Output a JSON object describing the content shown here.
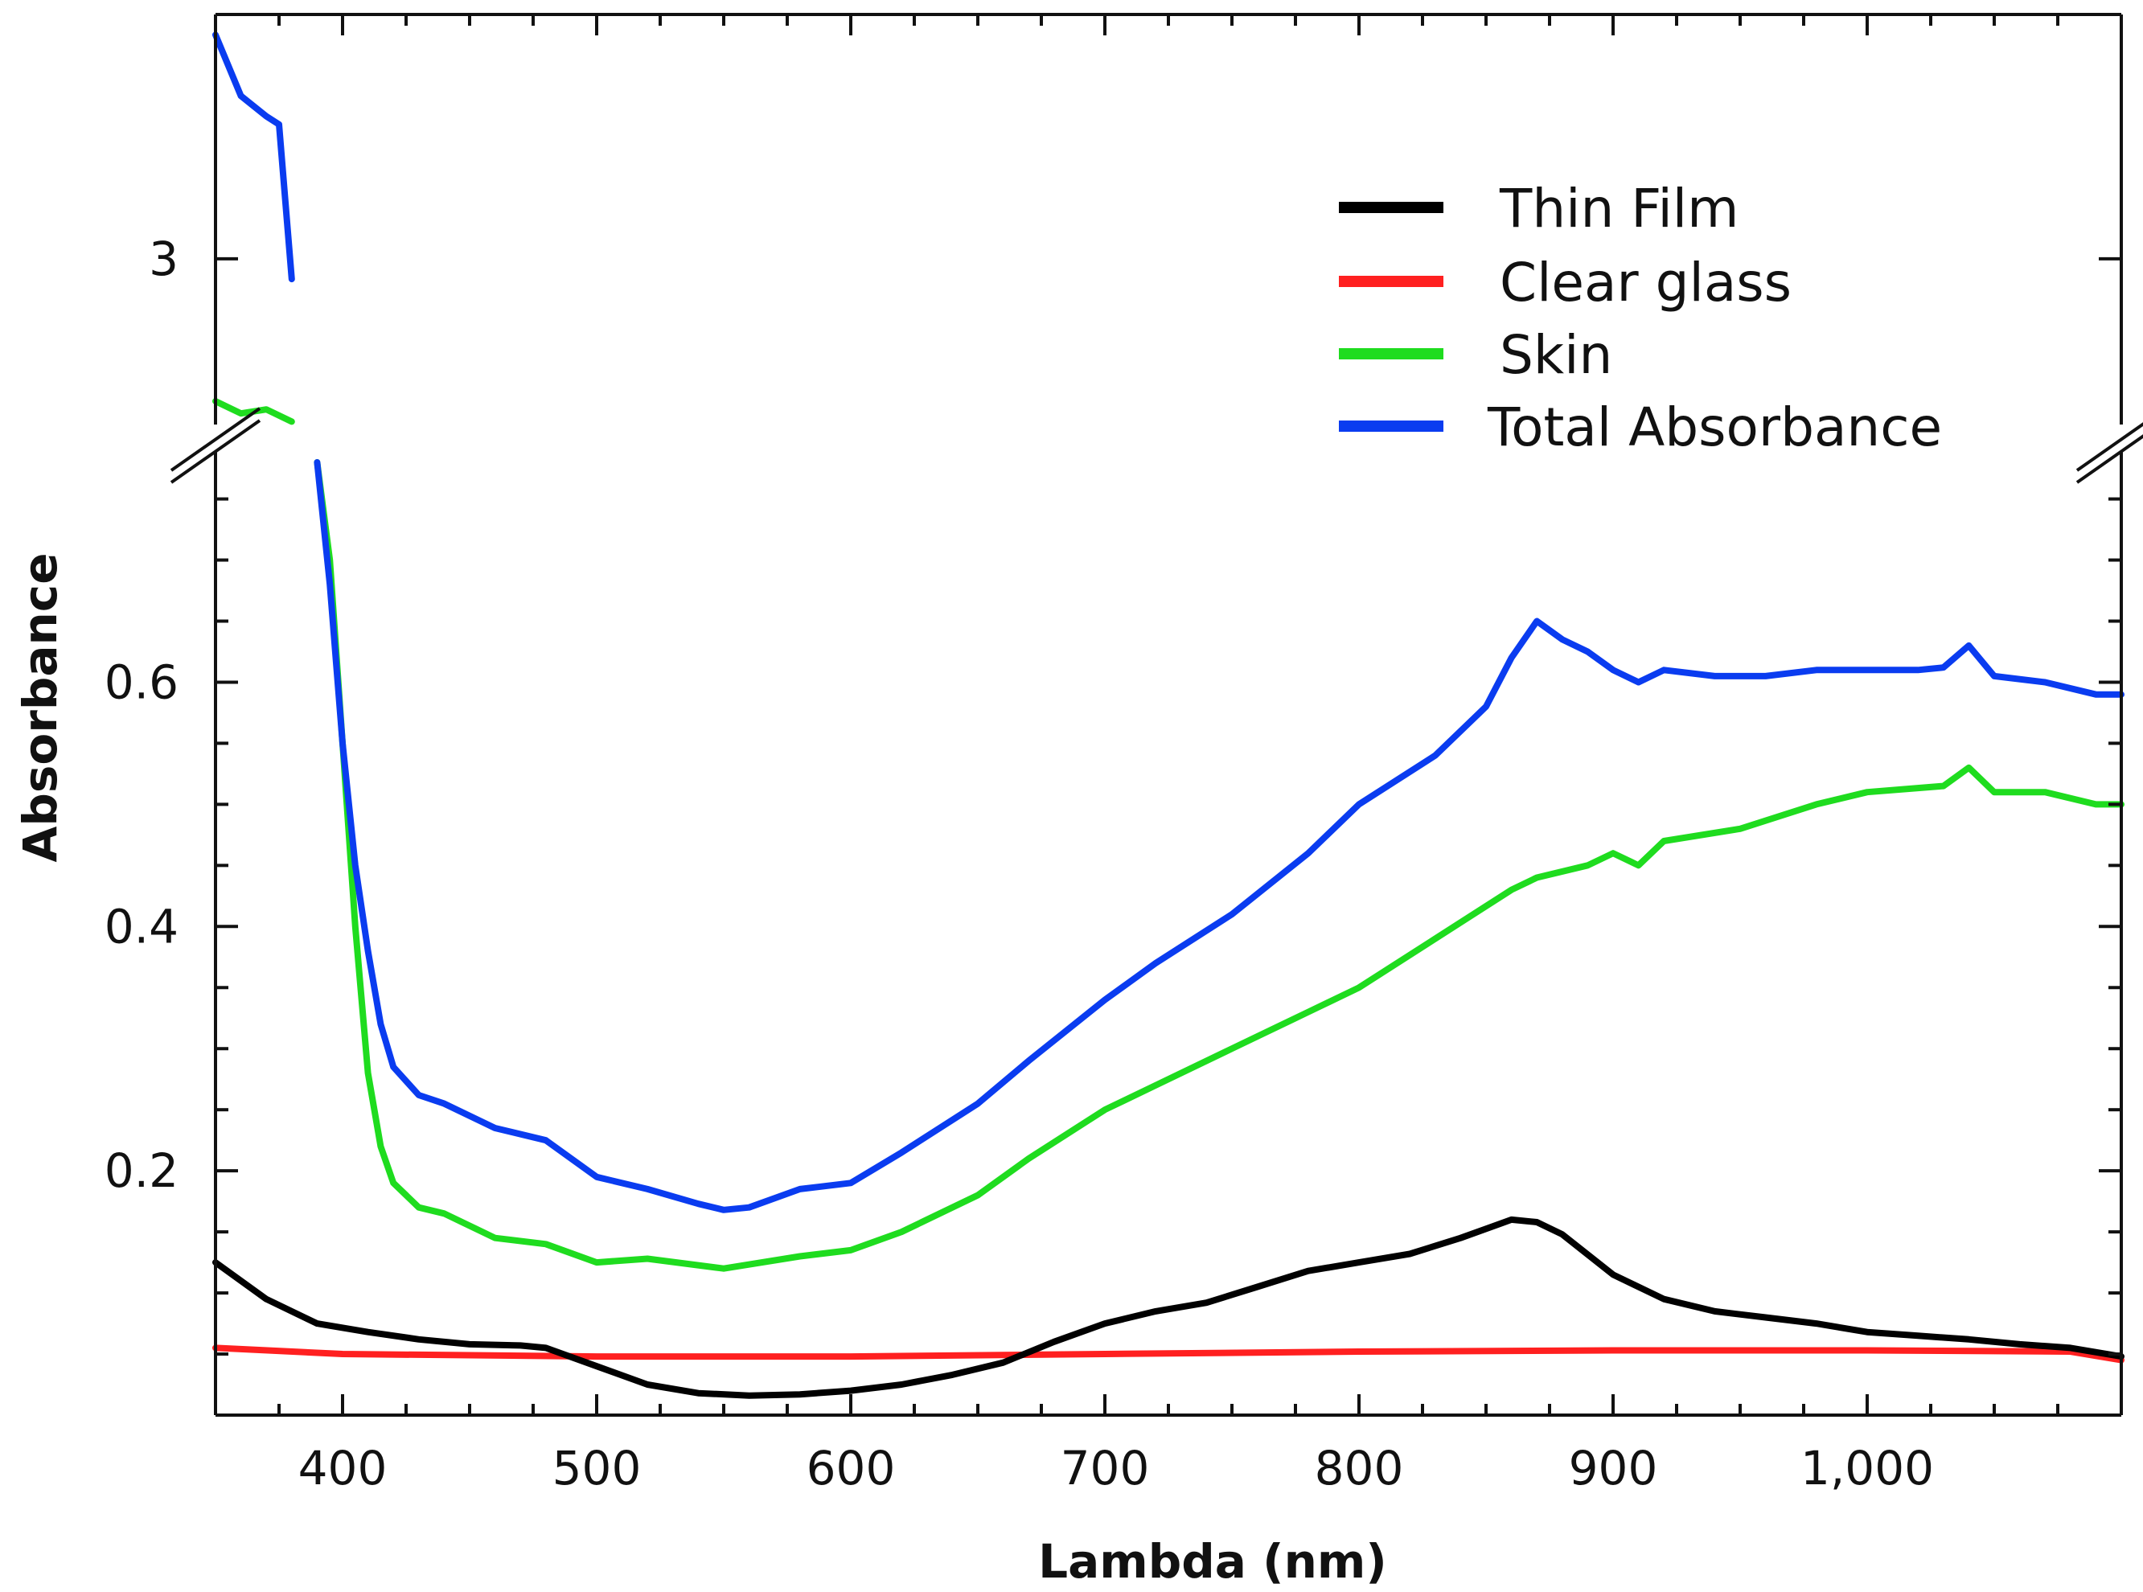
{
  "chart_data": {
    "type": "line",
    "title": "",
    "xlabel": "Lambda (nm)",
    "ylabel": "Absorbance",
    "xlim": [
      350,
      1100
    ],
    "ylim_lower": [
      0,
      0.78
    ],
    "ylim_upper": [
      2.5,
      3.6
    ],
    "axis_break": "y, between 0.78 and 2.5",
    "grid": false,
    "legend_position": "top-right",
    "x_ticks": [
      400,
      500,
      600,
      700,
      800,
      900,
      1000
    ],
    "x_tick_labels": [
      "400",
      "500",
      "600",
      "700",
      "800",
      "900",
      "1,000"
    ],
    "y_ticks_lower": [
      0.2,
      0.4,
      0.6
    ],
    "y_tick_labels_lower": [
      "0.2",
      "0.4",
      "0.6"
    ],
    "y_ticks_upper": [
      3
    ],
    "y_tick_labels_upper": [
      "3"
    ],
    "series": [
      {
        "name": "Thin Film",
        "color": "#000000",
        "x": [
          350,
          370,
          390,
          410,
          430,
          450,
          470,
          480,
          500,
          520,
          540,
          560,
          580,
          600,
          620,
          640,
          660,
          680,
          700,
          720,
          740,
          760,
          780,
          800,
          820,
          840,
          860,
          870,
          880,
          900,
          920,
          940,
          960,
          980,
          1000,
          1020,
          1040,
          1060,
          1080,
          1100
        ],
        "y": [
          0.125,
          0.095,
          0.075,
          0.068,
          0.062,
          0.058,
          0.057,
          0.055,
          0.04,
          0.025,
          0.018,
          0.016,
          0.017,
          0.02,
          0.025,
          0.033,
          0.043,
          0.06,
          0.075,
          0.085,
          0.092,
          0.105,
          0.118,
          0.125,
          0.132,
          0.145,
          0.16,
          0.158,
          0.148,
          0.115,
          0.095,
          0.085,
          0.08,
          0.075,
          0.068,
          0.065,
          0.062,
          0.058,
          0.055,
          0.048
        ]
      },
      {
        "name": "Clear glass",
        "color": "#ff2020",
        "x": [
          350,
          400,
          500,
          600,
          700,
          800,
          900,
          1000,
          1080,
          1100
        ],
        "y": [
          0.055,
          0.05,
          0.048,
          0.048,
          0.05,
          0.052,
          0.053,
          0.053,
          0.052,
          0.045
        ]
      },
      {
        "name": "Skin",
        "color": "#1fdc1f",
        "x": [
          350,
          360,
          370,
          380,
          390,
          395,
          400,
          405,
          410,
          415,
          420,
          430,
          440,
          460,
          480,
          500,
          520,
          550,
          580,
          600,
          620,
          650,
          670,
          700,
          720,
          750,
          780,
          800,
          830,
          860,
          870,
          890,
          900,
          910,
          920,
          950,
          980,
          1000,
          1030,
          1040,
          1050,
          1070,
          1090,
          1100
        ],
        "y": [
          2.65,
          2.62,
          2.63,
          2.6,
          0.78,
          0.7,
          0.55,
          0.4,
          0.28,
          0.22,
          0.19,
          0.17,
          0.165,
          0.145,
          0.14,
          0.125,
          0.128,
          0.12,
          0.13,
          0.135,
          0.15,
          0.18,
          0.21,
          0.25,
          0.27,
          0.3,
          0.33,
          0.35,
          0.39,
          0.43,
          0.44,
          0.45,
          0.46,
          0.45,
          0.47,
          0.48,
          0.5,
          0.51,
          0.515,
          0.53,
          0.51,
          0.51,
          0.5,
          0.5
        ]
      },
      {
        "name": "Total Absorbance",
        "color": "#0a3cf0",
        "x": [
          350,
          360,
          370,
          375,
          380,
          390,
          395,
          400,
          405,
          410,
          415,
          420,
          430,
          440,
          460,
          480,
          500,
          520,
          540,
          550,
          560,
          580,
          600,
          620,
          650,
          670,
          700,
          720,
          750,
          780,
          800,
          830,
          850,
          860,
          870,
          880,
          890,
          900,
          910,
          920,
          940,
          960,
          980,
          1000,
          1020,
          1030,
          1040,
          1050,
          1070,
          1090,
          1100
        ],
        "y": [
          3.55,
          3.4,
          3.35,
          3.33,
          2.95,
          0.78,
          0.68,
          0.55,
          0.45,
          0.38,
          0.32,
          0.285,
          0.262,
          0.255,
          0.235,
          0.225,
          0.195,
          0.185,
          0.173,
          0.168,
          0.17,
          0.185,
          0.19,
          0.215,
          0.255,
          0.29,
          0.34,
          0.37,
          0.41,
          0.46,
          0.5,
          0.54,
          0.58,
          0.62,
          0.65,
          0.635,
          0.625,
          0.61,
          0.6,
          0.61,
          0.605,
          0.605,
          0.61,
          0.61,
          0.61,
          0.612,
          0.63,
          0.605,
          0.6,
          0.59,
          0.59
        ]
      }
    ]
  }
}
